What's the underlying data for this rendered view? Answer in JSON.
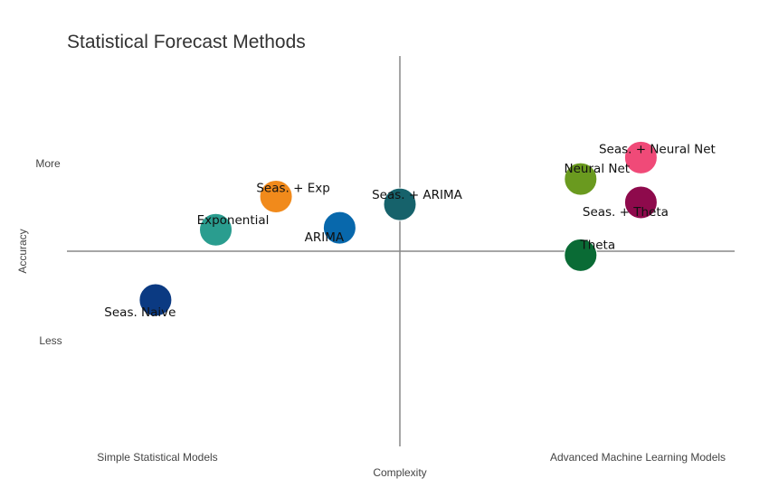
{
  "chart_data": {
    "type": "scatter",
    "title": "Statistical Forecast Methods",
    "xlabel": "Complexity",
    "ylabel": "Accuracy",
    "x_tick_labels": {
      "low": "Simple Statistical Models",
      "high": "Advanced Machine Learning Models"
    },
    "y_tick_labels": {
      "high": "More",
      "low": "Less"
    },
    "xlim": [
      -1,
      1
    ],
    "ylim": [
      -1,
      1
    ],
    "grid": false,
    "points": [
      {
        "label": "Seas. Naive",
        "x": -0.73,
        "y": -0.25,
        "color": "#0b3a82"
      },
      {
        "label": "Exponential",
        "x": -0.55,
        "y": 0.11,
        "color": "#2a9d8f"
      },
      {
        "label": "Seas. + Exp",
        "x": -0.37,
        "y": 0.28,
        "color": "#f18a1b"
      },
      {
        "label": "ARIMA",
        "x": -0.18,
        "y": 0.12,
        "color": "#0868ac"
      },
      {
        "label": "Seas. + ARIMA",
        "x": 0.0,
        "y": 0.24,
        "color": "#16626b"
      },
      {
        "label": "Neural Net",
        "x": 0.54,
        "y": 0.37,
        "color": "#6a9a1f"
      },
      {
        "label": "Theta",
        "x": 0.54,
        "y": -0.02,
        "color": "#0a6b35"
      },
      {
        "label": "Seas. + Neural Net",
        "x": 0.72,
        "y": 0.48,
        "color": "#f04a78"
      },
      {
        "label": "Seas. + Theta",
        "x": 0.72,
        "y": 0.25,
        "color": "#8e0a4c"
      }
    ]
  }
}
